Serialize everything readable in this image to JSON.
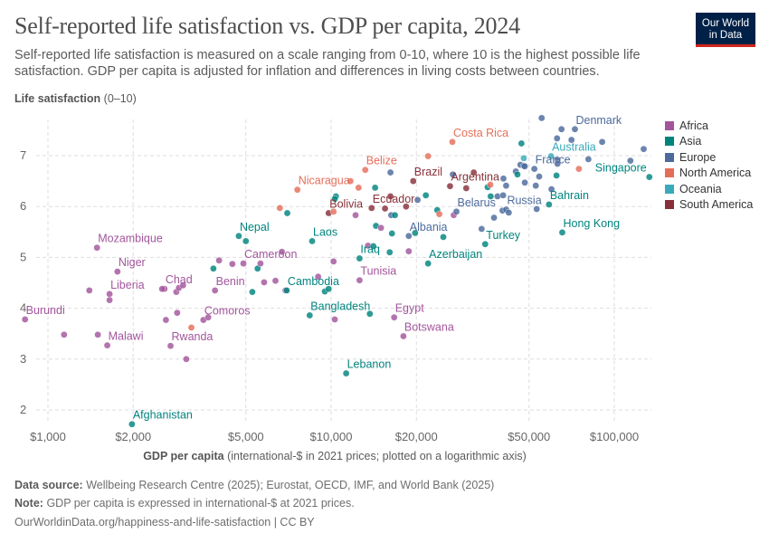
{
  "header": {
    "title": "Self-reported life satisfaction vs. GDP per capita, 2024",
    "subtitle": "Self-reported life satisfaction is measured on a scale ranging from 0-10, where 10 is the highest possible life satisfaction. GDP per capita is adjusted for inflation and differences in living costs between countries.",
    "logo_line1": "Our World",
    "logo_line2": "in Data"
  },
  "footer": {
    "source_label": "Data source:",
    "source_text": "Wellbeing Research Centre (2025); Eurostat, OECD, IMF, and World Bank (2025)",
    "note_label": "Note:",
    "note_text": "GDP per capita is expressed in international-$ at 2021 prices.",
    "link": "OurWorldinData.org/happiness-and-life-satisfaction | CC BY"
  },
  "colors": {
    "Africa": "#a2559c",
    "Asia": "#00847e",
    "Europe": "#4c6a9c",
    "North America": "#e56e5a",
    "Oceania": "#38aaba",
    "South America": "#883039"
  },
  "chart_data": {
    "type": "scatter",
    "title": "Self-reported life satisfaction vs. GDP per capita, 2024",
    "ylabel_bold": "Life satisfaction",
    "ylabel_rest": "(0–10)",
    "xlabel_bold": "GDP per capita",
    "xlabel_rest": "(international-$ in 2021 prices; plotted on a logarithmic axis)",
    "xscale": "log",
    "xlim": [
      850,
      135000
    ],
    "ylim": [
      1.7,
      7.8
    ],
    "grid": true,
    "legend_position": "right",
    "x_ticks": [
      {
        "value": 1000,
        "label": "$1,000"
      },
      {
        "value": 2000,
        "label": "$2,000"
      },
      {
        "value": 5000,
        "label": "$5,000"
      },
      {
        "value": 10000,
        "label": "$10,000"
      },
      {
        "value": 20000,
        "label": "$20,000"
      },
      {
        "value": 50000,
        "label": "$50,000"
      },
      {
        "value": 100000,
        "label": "$100,000"
      }
    ],
    "y_ticks": [
      {
        "value": 2,
        "label": "2"
      },
      {
        "value": 3,
        "label": "3"
      },
      {
        "value": 4,
        "label": "4"
      },
      {
        "value": 5,
        "label": "5"
      },
      {
        "value": 6,
        "label": "6"
      },
      {
        "value": 7,
        "label": "7"
      }
    ],
    "legend": [
      "Africa",
      "Asia",
      "Europe",
      "North America",
      "Oceania",
      "South America"
    ],
    "points": [
      [
        "Burundi",
        830,
        3.78,
        "Africa"
      ],
      [
        "",
        1140,
        3.48,
        "Africa"
      ],
      [
        "",
        1500,
        3.48,
        "Africa"
      ],
      [
        "Malawi",
        1620,
        3.27,
        "Africa"
      ],
      [
        "",
        1400,
        4.35,
        "Africa"
      ],
      [
        "Liberia",
        1650,
        4.28,
        "Africa"
      ],
      [
        "",
        1650,
        4.16,
        "Africa"
      ],
      [
        "Niger",
        1760,
        4.72,
        "Africa"
      ],
      [
        "Mozambique",
        1490,
        5.19,
        "Africa"
      ],
      [
        "Afghanistan",
        1980,
        1.72,
        "Asia"
      ],
      [
        "Chad",
        2580,
        4.38,
        "Africa"
      ],
      [
        "",
        2530,
        4.38,
        "Africa"
      ],
      [
        "",
        2840,
        4.32,
        "Africa"
      ],
      [
        "",
        2900,
        4.4,
        "Africa"
      ],
      [
        "",
        3000,
        4.45,
        "Africa"
      ],
      [
        "",
        2610,
        3.77,
        "Africa"
      ],
      [
        "",
        2860,
        3.91,
        "Africa"
      ],
      [
        "Rwanda",
        2710,
        3.26,
        "Africa"
      ],
      [
        "",
        3080,
        3.0,
        "Africa"
      ],
      [
        "",
        3210,
        3.62,
        "North America"
      ],
      [
        "Comoros",
        3540,
        3.77,
        "Africa"
      ],
      [
        "",
        3680,
        3.82,
        "Africa"
      ],
      [
        "",
        3840,
        4.78,
        "Asia"
      ],
      [
        "",
        4020,
        4.94,
        "Africa"
      ],
      [
        "Benin",
        3890,
        4.35,
        "Africa"
      ],
      [
        "",
        4480,
        4.87,
        "Africa"
      ],
      [
        "Cameroon",
        4900,
        4.88,
        "Africa"
      ],
      [
        "Nepal",
        4720,
        5.42,
        "Asia"
      ],
      [
        "",
        5000,
        5.32,
        "Asia"
      ],
      [
        "",
        5270,
        4.32,
        "Asia"
      ],
      [
        "",
        5500,
        4.78,
        "Asia"
      ],
      [
        "",
        5630,
        4.88,
        "Africa"
      ],
      [
        "",
        5800,
        4.51,
        "Africa"
      ],
      [
        "",
        6360,
        4.54,
        "Africa"
      ],
      [
        "",
        6700,
        5.11,
        "Africa"
      ],
      [
        "",
        6900,
        4.35,
        "Africa"
      ],
      [
        "Cambodia",
        6970,
        4.35,
        "Asia"
      ],
      [
        "",
        6590,
        5.97,
        "North America"
      ],
      [
        "",
        7000,
        5.87,
        "Asia"
      ],
      [
        "Nicaragua",
        7600,
        6.33,
        "North America"
      ],
      [
        "Laos",
        8570,
        5.32,
        "Asia"
      ],
      [
        "Bangladesh",
        8400,
        3.86,
        "Asia"
      ],
      [
        "",
        9000,
        4.62,
        "Africa"
      ],
      [
        "",
        9500,
        4.33,
        "Asia"
      ],
      [
        "",
        9800,
        4.38,
        "Asia"
      ],
      [
        "Bolivia",
        9800,
        5.87,
        "South America"
      ],
      [
        "",
        10200,
        5.9,
        "North America"
      ],
      [
        "",
        10200,
        4.92,
        "Africa"
      ],
      [
        "",
        10300,
        3.78,
        "Africa"
      ],
      [
        "",
        10400,
        6.2,
        "Asia"
      ],
      [
        "",
        10300,
        6.15,
        "Asia"
      ],
      [
        "Lebanon",
        11300,
        2.72,
        "Asia"
      ],
      [
        "",
        11700,
        6.5,
        "North America"
      ],
      [
        "",
        12200,
        5.83,
        "Africa"
      ],
      [
        "",
        12500,
        6.37,
        "North America"
      ],
      [
        "Iraq",
        12600,
        4.98,
        "Asia"
      ],
      [
        "Tunisia",
        12600,
        4.55,
        "Africa"
      ],
      [
        "",
        13700,
        3.89,
        "Asia"
      ],
      [
        "Belize",
        13200,
        6.72,
        "North America"
      ],
      [
        "",
        14300,
        6.37,
        "Asia"
      ],
      [
        "Ecuador",
        13900,
        5.97,
        "South America"
      ],
      [
        "",
        13500,
        5.23,
        "Africa"
      ],
      [
        "",
        14100,
        5.22,
        "Asia"
      ],
      [
        "",
        14400,
        5.62,
        "Asia"
      ],
      [
        "",
        15000,
        5.58,
        "Africa"
      ],
      [
        "",
        15500,
        5.96,
        "South America"
      ],
      [
        "Costa Rica",
        26800,
        7.27,
        "North America"
      ],
      [
        "",
        22000,
        6.99,
        "North America"
      ],
      [
        "",
        16200,
        6.67,
        "Europe"
      ],
      [
        "Brazil",
        19500,
        6.5,
        "South America"
      ],
      [
        "",
        20200,
        6.13,
        "Europe"
      ],
      [
        "",
        21600,
        6.22,
        "Asia"
      ],
      [
        "",
        16200,
        6.2,
        "South America"
      ],
      [
        "",
        18400,
        6.0,
        "South America"
      ],
      [
        "Argentina",
        26300,
        6.4,
        "South America"
      ],
      [
        "",
        31900,
        6.67,
        "South America"
      ],
      [
        "",
        30000,
        6.36,
        "South America"
      ],
      [
        "",
        26900,
        6.63,
        "Europe"
      ],
      [
        "",
        16300,
        5.83,
        "Europe"
      ],
      [
        "",
        16800,
        5.83,
        "Asia"
      ],
      [
        "",
        16400,
        5.47,
        "Asia"
      ],
      [
        "Albania",
        18800,
        5.42,
        "Europe"
      ],
      [
        "",
        19800,
        5.48,
        "Asia"
      ],
      [
        "",
        24900,
        5.4,
        "Asia"
      ],
      [
        "",
        23700,
        5.93,
        "Asia"
      ],
      [
        "",
        24100,
        5.85,
        "North America"
      ],
      [
        "",
        27100,
        5.83,
        "Africa"
      ],
      [
        "Belarus",
        27700,
        5.9,
        "Europe"
      ],
      [
        "",
        16100,
        5.1,
        "Asia"
      ],
      [
        "",
        18800,
        5.12,
        "Africa"
      ],
      [
        "Azerbaijan",
        22000,
        4.88,
        "Asia"
      ],
      [
        "Egypt",
        16700,
        3.82,
        "Africa"
      ],
      [
        "Botswana",
        18000,
        3.45,
        "Africa"
      ],
      [
        "",
        34000,
        5.56,
        "Europe"
      ],
      [
        "Turkey",
        35000,
        5.26,
        "Asia"
      ],
      [
        "",
        37600,
        5.78,
        "Europe"
      ],
      [
        "",
        35700,
        6.38,
        "Asia"
      ],
      [
        "",
        36500,
        6.43,
        "North America"
      ],
      [
        "",
        36600,
        6.2,
        "Asia"
      ],
      [
        "",
        38700,
        6.2,
        "Europe"
      ],
      [
        "",
        40500,
        6.22,
        "Europe"
      ],
      [
        "",
        40600,
        6.55,
        "Europe"
      ],
      [
        "",
        41500,
        6.41,
        "Europe"
      ],
      [
        "",
        40300,
        5.92,
        "Europe"
      ],
      [
        "Russia",
        41500,
        5.94,
        "Europe"
      ],
      [
        "",
        42400,
        5.88,
        "Europe"
      ],
      [
        "",
        44900,
        6.69,
        "Europe"
      ],
      [
        "",
        45500,
        6.63,
        "Asia"
      ],
      [
        "",
        47000,
        7.24,
        "Asia"
      ],
      [
        "",
        47900,
        6.95,
        "Oceania"
      ],
      [
        "",
        46600,
        6.82,
        "Europe"
      ],
      [
        "",
        47900,
        6.8,
        "Europe"
      ],
      [
        "",
        48300,
        6.79,
        "Europe"
      ],
      [
        "",
        48300,
        6.47,
        "Europe"
      ],
      [
        "France",
        52200,
        6.74,
        "Europe"
      ],
      [
        "",
        52800,
        6.41,
        "Europe"
      ],
      [
        "",
        54300,
        6.59,
        "Europe"
      ],
      [
        "",
        53200,
        5.95,
        "Europe"
      ],
      [
        "",
        55400,
        7.74,
        "Europe"
      ],
      [
        "Bahrain",
        58800,
        6.04,
        "Asia"
      ],
      [
        "",
        60000,
        6.34,
        "Europe"
      ],
      [
        "Australia",
        59800,
        6.99,
        "Oceania"
      ],
      [
        "",
        62800,
        7.34,
        "Europe"
      ],
      [
        "",
        65100,
        7.52,
        "Europe"
      ],
      [
        "",
        63000,
        6.92,
        "Europe"
      ],
      [
        "",
        63000,
        6.84,
        "Europe"
      ],
      [
        "",
        62500,
        6.61,
        "Asia"
      ],
      [
        "Hong Kong",
        65500,
        5.49,
        "Asia"
      ],
      [
        "",
        70600,
        7.31,
        "Europe"
      ],
      [
        "Denmark",
        72600,
        7.52,
        "Europe"
      ],
      [
        "",
        75000,
        6.74,
        "North America"
      ],
      [
        "",
        81000,
        6.93,
        "Europe"
      ],
      [
        "",
        90600,
        7.27,
        "Europe"
      ],
      [
        "",
        114000,
        6.9,
        "Europe"
      ],
      [
        "",
        127000,
        7.13,
        "Europe"
      ],
      [
        "Singapore",
        133000,
        6.58,
        "Asia"
      ]
    ]
  }
}
